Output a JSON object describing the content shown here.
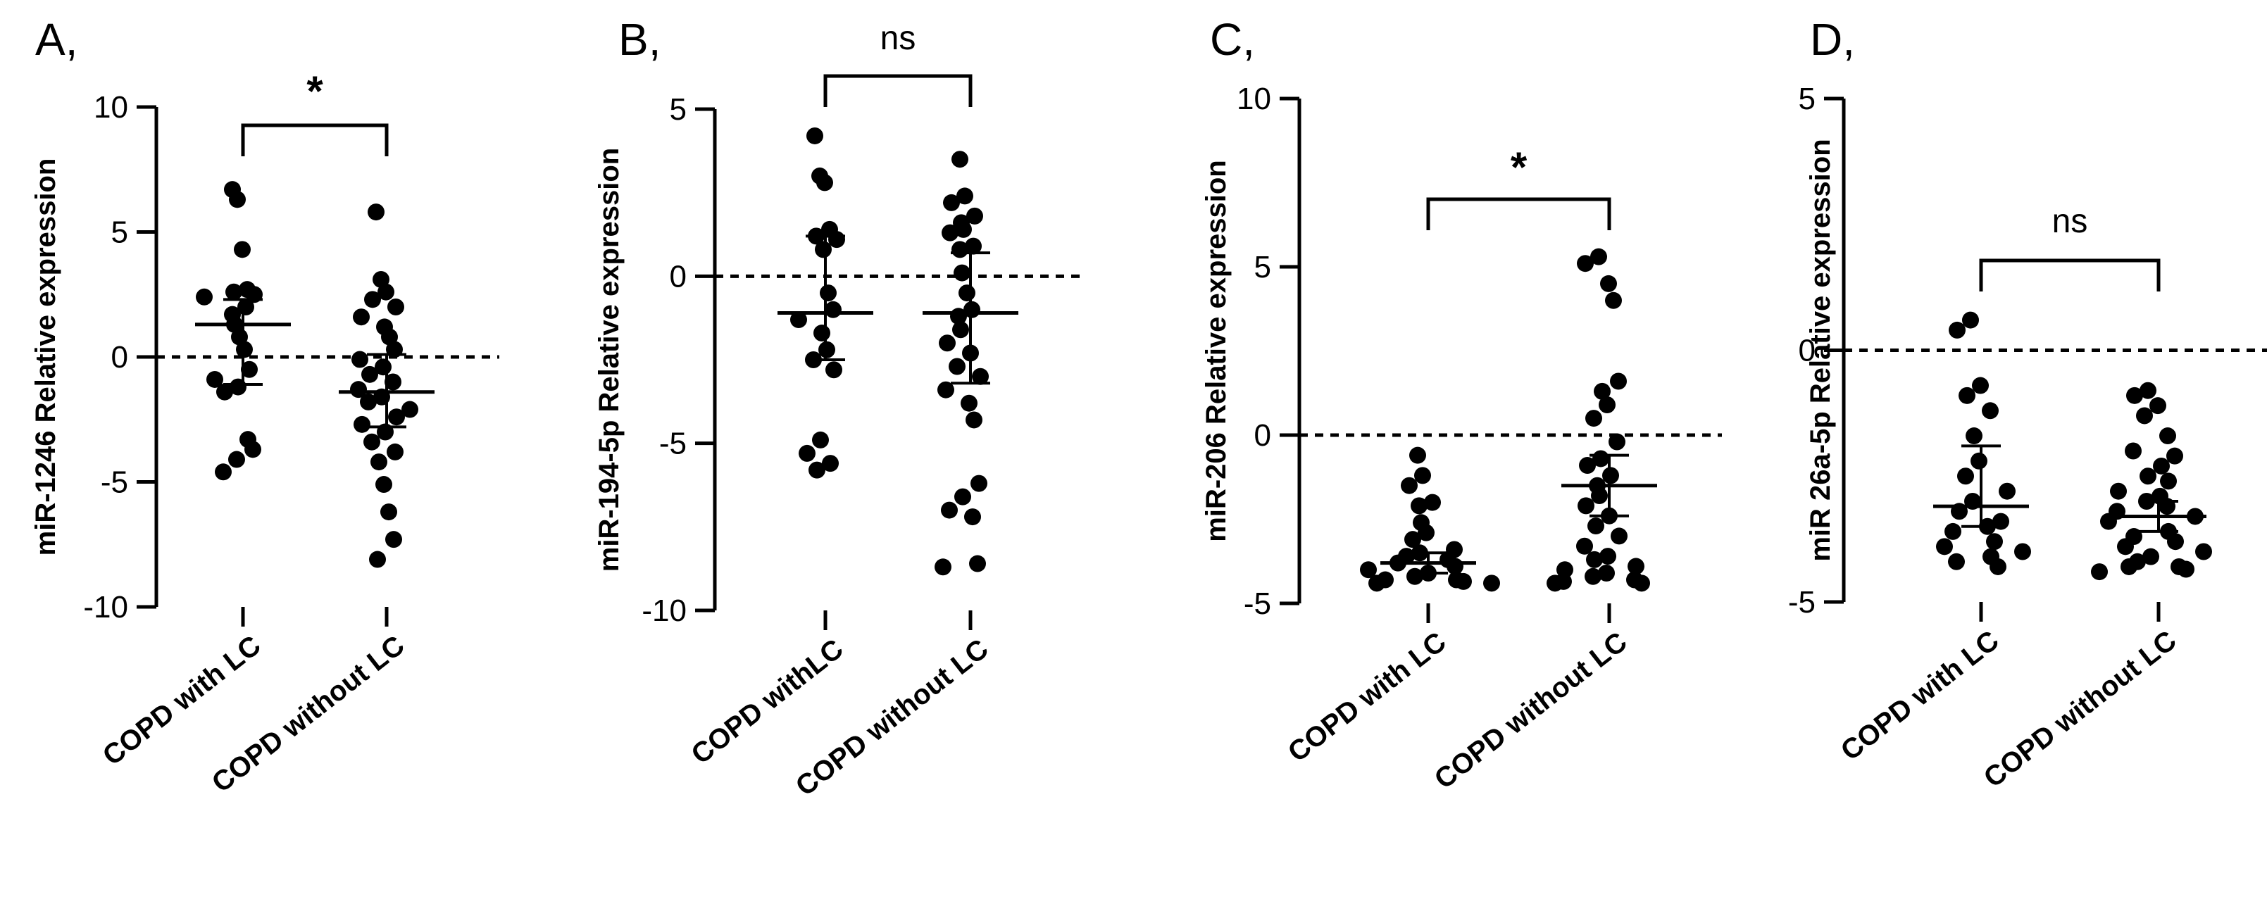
{
  "chart_data": [
    {
      "type": "scatter",
      "panel_label": "A,",
      "ylabel": "miR-1246 Relative expression",
      "ylim": [
        -10,
        10
      ],
      "yticks": [
        "10",
        "5",
        "0",
        "-5",
        "-10"
      ],
      "tick_values": [
        10,
        5,
        0,
        -5,
        -10
      ],
      "categories": [
        "COPD with LC",
        "COPD without LC"
      ],
      "significance": "*",
      "reference_line_y": 0,
      "series": [
        {
          "name": "COPD with LC",
          "values": [
            6.7,
            6.3,
            4.3,
            2.7,
            2.6,
            2.5,
            2.4,
            2.0,
            1.7,
            1.3,
            0.8,
            0.3,
            -0.5,
            -0.9,
            -1.2,
            -1.4,
            -3.3,
            -3.7,
            -4.1,
            -4.6
          ],
          "mean": 1.3,
          "err_low": -1.1,
          "err_high": 2.3
        },
        {
          "name": "COPD without LC",
          "values": [
            5.8,
            3.1,
            2.6,
            2.3,
            2.0,
            1.6,
            1.2,
            0.8,
            0.3,
            -0.1,
            -0.4,
            -0.7,
            -1.0,
            -1.3,
            -1.6,
            -1.8,
            -2.1,
            -2.4,
            -2.7,
            -3.0,
            -3.4,
            -3.8,
            -4.2,
            -5.1,
            -6.2,
            -7.3,
            -8.1
          ],
          "mean": -1.4,
          "err_low": -2.8,
          "err_high": 0.1
        }
      ]
    },
    {
      "type": "scatter",
      "panel_label": "B,",
      "ylabel": "miR-194-5p Relative expression",
      "ylim": [
        -10,
        5
      ],
      "yticks": [
        "5",
        "0",
        "-5",
        "-10"
      ],
      "tick_values": [
        5,
        0,
        -5,
        -10
      ],
      "categories": [
        "COPD withLC",
        "COPD without LC"
      ],
      "significance": "ns",
      "reference_line_y": 0,
      "series": [
        {
          "name": "COPD withLC",
          "values": [
            4.2,
            3.0,
            2.8,
            1.4,
            1.2,
            1.1,
            0.8,
            -0.5,
            -1.0,
            -1.3,
            -1.7,
            -2.2,
            -2.5,
            -2.8,
            -4.9,
            -5.3,
            -5.6,
            -5.8
          ],
          "mean": -1.1,
          "err_low": -2.5,
          "err_high": 1.2
        },
        {
          "name": "COPD without LC",
          "values": [
            3.5,
            2.4,
            2.2,
            1.8,
            1.6,
            1.4,
            1.3,
            0.9,
            0.8,
            0.1,
            -0.5,
            -1.0,
            -1.2,
            -1.6,
            -2.0,
            -2.3,
            -2.7,
            -3.0,
            -3.4,
            -3.8,
            -4.3,
            -6.2,
            -6.6,
            -7.0,
            -7.2,
            -8.6,
            -8.7
          ],
          "mean": -1.1,
          "err_low": -3.2,
          "err_high": 0.7
        }
      ]
    },
    {
      "type": "scatter",
      "panel_label": "C,",
      "ylabel": "miR-206 Relative expression",
      "ylim": [
        -5,
        10
      ],
      "yticks": [
        "10",
        "5",
        "0",
        "-5"
      ],
      "tick_values": [
        10,
        5,
        0,
        -5
      ],
      "categories": [
        "COPD with LC",
        "COPD without LC"
      ],
      "significance": "*",
      "reference_line_y": 0,
      "series": [
        {
          "name": "COPD with LC",
          "values": [
            -0.6,
            -1.2,
            -1.5,
            -2.0,
            -2.1,
            -2.6,
            -2.9,
            -3.1,
            -3.4,
            -3.5,
            -3.6,
            -3.7,
            -3.8,
            -3.9,
            -4.0,
            -4.1,
            -4.2,
            -4.3,
            -4.3,
            -4.35,
            -4.4,
            -4.4
          ],
          "mean": -3.8,
          "err_low": -4.1,
          "err_high": -3.5
        },
        {
          "name": "COPD without LC",
          "values": [
            5.3,
            5.1,
            4.5,
            4.0,
            1.6,
            1.3,
            0.9,
            0.5,
            -0.2,
            -0.7,
            -0.9,
            -1.2,
            -1.5,
            -1.8,
            -2.1,
            -2.4,
            -2.7,
            -3.0,
            -3.3,
            -3.6,
            -3.7,
            -3.9,
            -4.0,
            -4.1,
            -4.2,
            -4.3,
            -4.35,
            -4.4,
            -4.4
          ],
          "mean": -1.5,
          "err_low": -2.4,
          "err_high": -0.6
        }
      ]
    },
    {
      "type": "scatter",
      "panel_label": "D,",
      "ylabel": "miR 26a-5p Relative expression",
      "ylim": [
        -5,
        5
      ],
      "yticks": [
        "5",
        "0",
        "-5"
      ],
      "tick_values": [
        5,
        0,
        -5
      ],
      "categories": [
        "COPD with LC",
        "COPD without LC"
      ],
      "significance": "ns",
      "reference_line_y": 0,
      "series": [
        {
          "name": "COPD with LC",
          "values": [
            0.6,
            0.4,
            -0.7,
            -0.9,
            -1.2,
            -1.7,
            -2.2,
            -2.5,
            -2.8,
            -3.0,
            -3.2,
            -3.4,
            -3.5,
            -3.6,
            -3.8,
            -3.9,
            -4.0,
            -4.1,
            -4.2,
            -4.3
          ],
          "mean": -3.1,
          "err_low": -3.5,
          "err_high": -1.9
        },
        {
          "name": "COPD without LC",
          "values": [
            -0.8,
            -0.9,
            -1.1,
            -1.3,
            -1.7,
            -2.0,
            -2.1,
            -2.3,
            -2.5,
            -2.6,
            -2.8,
            -2.9,
            -3.0,
            -3.1,
            -3.2,
            -3.3,
            -3.4,
            -3.6,
            -3.7,
            -3.8,
            -3.9,
            -4.0,
            -4.1,
            -4.2,
            -4.3,
            -4.3,
            -4.35,
            -4.4
          ],
          "mean": -3.3,
          "err_low": -3.6,
          "err_high": -3.0
        }
      ]
    }
  ]
}
